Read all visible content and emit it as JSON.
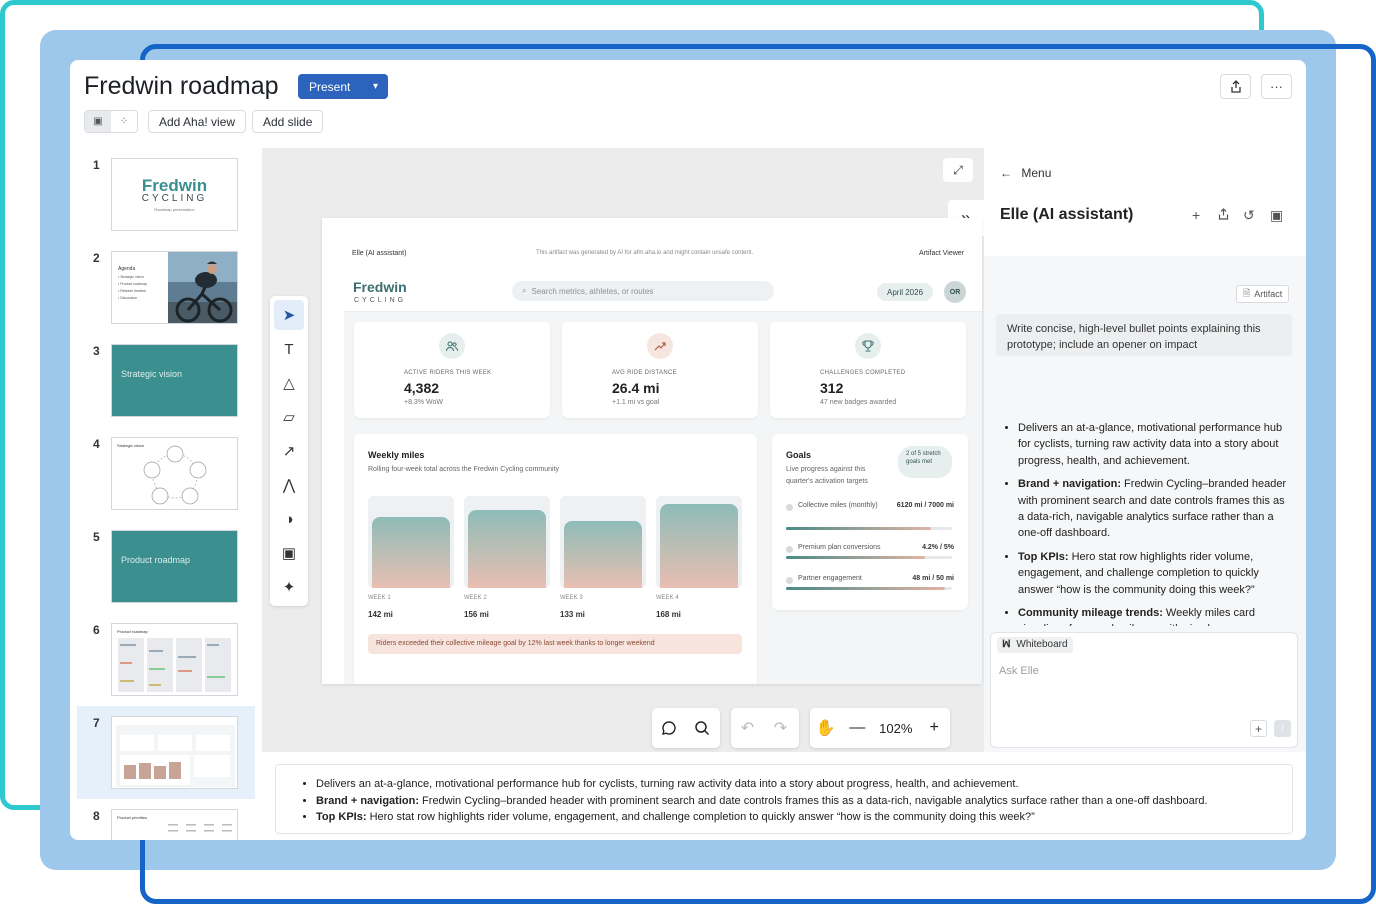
{
  "app": {
    "title": "Fredwin roadmap",
    "present_label": "Present",
    "present_caret": "▾",
    "share_icon": "⇧",
    "more_icon": "···",
    "add_aha_view": "Add Aha! view",
    "add_slide": "Add slide",
    "colors": {
      "accent": "#2c63bd",
      "teal": "#3b8f8e",
      "frame_cyan": "#2ec9cf",
      "frame_blue": "#1565c8",
      "frame_light": "#9ec7ec"
    }
  },
  "slides": [
    {
      "num": "1",
      "kind": "title",
      "logo": "Fredwin",
      "logo_sub": "CYCLING",
      "tagline": "Roadmap presentation"
    },
    {
      "num": "2",
      "kind": "agenda",
      "heading": "Agenda",
      "items": [
        "• Strategic vision",
        "• Product roadmap",
        "• Release timeline",
        "• Discussion"
      ]
    },
    {
      "num": "3",
      "kind": "teal",
      "label": "Strategic vision"
    },
    {
      "num": "4",
      "kind": "diagram",
      "heading": "Strategic vision"
    },
    {
      "num": "5",
      "kind": "teal",
      "label": "Product roadmap"
    },
    {
      "num": "6",
      "kind": "table",
      "heading": "Product roadmap"
    },
    {
      "num": "7",
      "kind": "dashboard"
    },
    {
      "num": "8",
      "kind": "table",
      "heading": "Product priorities"
    }
  ],
  "canvas": {
    "expand_icon": "⤢",
    "collapse_icon": "»",
    "tools": [
      "cursor-icon",
      "text-icon",
      "shapes-icon",
      "sticky-note-icon",
      "arrow-icon",
      "pen-icon",
      "palette-icon",
      "image-icon",
      "ai-icon"
    ],
    "tool_glyphs": [
      "➤",
      "T",
      "△",
      "▱",
      "↗",
      "⋀",
      "◑",
      "▣",
      "✦"
    ]
  },
  "artifact": {
    "bar_left": "Elle (AI assistant)",
    "bar_middle": "This artifact was generated by AI for afm.aha.io and might contain unsafe content.",
    "bar_right": "Artifact Viewer",
    "brand": "Fredwin",
    "brand_sub": "CYCLING",
    "search_placeholder": "Search metrics, athletes, or routes",
    "date": "April 2026",
    "avatar": "OR",
    "kpis": [
      {
        "label": "ACTIVE RIDERS THIS WEEK",
        "value": "4,382",
        "sub": "+8.3% WoW",
        "icon": "👥",
        "color": "#e6efee"
      },
      {
        "label": "AVG RIDE DISTANCE",
        "value": "26.4 mi",
        "sub": "+1.1 mi vs goal",
        "icon": "↗",
        "color": "#f6e6df"
      },
      {
        "label": "CHALLENGES COMPLETED",
        "value": "312",
        "sub": "47 new badges awarded",
        "icon": "🏆",
        "color": "#e6efee"
      }
    ],
    "weekly": {
      "title": "Weekly miles",
      "subtitle": "Rolling four-week total across the Fredwin Cycling community",
      "weeks": [
        {
          "label": "WEEK 1",
          "value": "142 mi",
          "miles": 142
        },
        {
          "label": "WEEK 2",
          "value": "156 mi",
          "miles": 156
        },
        {
          "label": "WEEK 3",
          "value": "133 mi",
          "miles": 133
        },
        {
          "label": "WEEK 4",
          "value": "168 mi",
          "miles": 168
        }
      ],
      "banner": "Riders exceeded their collective mileage goal by 12% last week thanks to longer weekend"
    },
    "goals": {
      "title": "Goals",
      "subtitle": "Live progress against this quarter's activation targets",
      "pill": "2 of 5 stretch goals met",
      "rows": [
        {
          "name": "Collective miles (monthly)",
          "value": "6120 mi / 7000 mi",
          "progress": 0.874
        },
        {
          "name": "Premium plan conversions",
          "value": "4.2% / 5%",
          "progress": 0.84
        },
        {
          "name": "Partner engagement",
          "value": "48 mi / 50 mi",
          "progress": 0.96
        }
      ]
    }
  },
  "zoom": {
    "level": "102%"
  },
  "notes": [
    {
      "bold": "",
      "text": "Delivers an at-a-glance, motivational performance hub for cyclists, turning raw activity data into a story about progress, health, and achievement."
    },
    {
      "bold": "Brand + navigation:",
      "text": " Fredwin Cycling–branded header with prominent search and date controls frames this as a data-rich, navigable analytics surface rather than a one-off dashboard."
    },
    {
      "bold": "Top KPIs:",
      "text": " Hero stat row highlights rider volume, engagement, and challenge completion to quickly answer “how is the community doing this week?”"
    }
  ],
  "assistant": {
    "menu_label": "Menu",
    "title": "Elle (AI assistant)",
    "artifact_chip": "Artifact",
    "user_message": "Write concise, high-level bullet points explaining this prototype; include an opener on impact",
    "response": [
      {
        "bold": "",
        "text": "Delivers an at-a-glance, motivational performance hub for cyclists, turning raw activity data into a story about progress, health, and achievement."
      },
      {
        "bold": "Brand + navigation:",
        "text": " Fredwin Cycling–branded header with prominent search and date controls frames this as a data-rich, navigable analytics surface rather than a one-off dashboard."
      },
      {
        "bold": "Top KPIs:",
        "text": " Hero stat row highlights rider volume, engagement, and challenge completion to quickly answer “how is the community doing this week?”"
      },
      {
        "bold": "Community mileage trends:",
        "text": " Weekly miles card visualizes four-week mileage with simple"
      }
    ],
    "whiteboard_chip": "Whiteboard",
    "ask_placeholder": "Ask Elle"
  }
}
